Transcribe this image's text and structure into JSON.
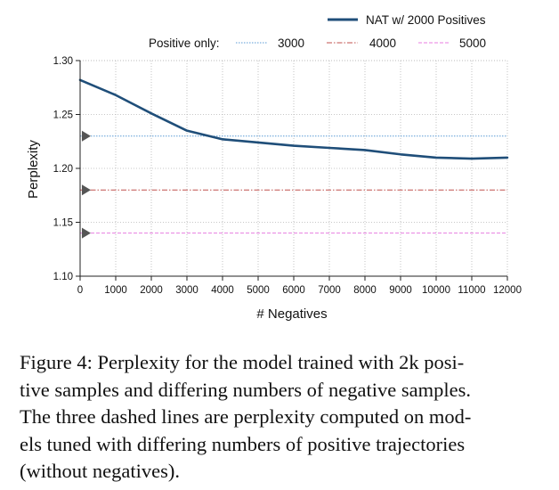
{
  "chart_data": {
    "type": "line",
    "title": "",
    "xlabel": "# Negatives",
    "ylabel": "Perplexity",
    "xlim": [
      0,
      12000
    ],
    "ylim": [
      1.1,
      1.3
    ],
    "x_ticks": [
      0,
      1000,
      2000,
      3000,
      4000,
      5000,
      6000,
      7000,
      8000,
      9000,
      10000,
      11000,
      12000
    ],
    "x_tick_labels": [
      "0",
      "1000",
      "2000",
      "3000",
      "4000",
      "5000",
      "6000",
      "7000",
      "8000",
      "9000",
      "10000",
      "11000",
      "12000"
    ],
    "y_ticks": [
      1.1,
      1.15,
      1.2,
      1.25,
      1.3
    ],
    "y_tick_labels": [
      "1.10",
      "1.15",
      "1.20",
      "1.25",
      "1.30"
    ],
    "grid": true,
    "series": [
      {
        "name": "NAT w/ 2000 Positives",
        "color": "#1f4e79",
        "style": "solid",
        "x": [
          0,
          1000,
          2000,
          3000,
          4000,
          5000,
          6000,
          7000,
          8000,
          9000,
          10000,
          11000,
          12000
        ],
        "values": [
          1.282,
          1.268,
          1.251,
          1.235,
          1.227,
          1.224,
          1.221,
          1.219,
          1.217,
          1.213,
          1.21,
          1.209,
          1.21
        ]
      }
    ],
    "reference_lines": [
      {
        "name": "3000",
        "value": 1.23,
        "color": "#5b9bd5",
        "style": "dotted"
      },
      {
        "name": "4000",
        "value": 1.18,
        "color": "#c0504d",
        "style": "dashdot"
      },
      {
        "name": "5000",
        "value": 1.14,
        "color": "#e87ee0",
        "style": "dashed"
      }
    ],
    "legend_prefix": "Positive only:",
    "legend_location": "top"
  },
  "caption": "Figure 4: Perplexity for the model trained with 2k positive samples and differing numbers of negative samples. The three dashed lines are perplexity computed on models tuned with differing numbers of positive trajectories (without negatives).",
  "caption_lines": [
    "Figure 4: Perplexity for the model trained with 2k posi-",
    "tive samples and differing numbers of negative samples.",
    "The three dashed lines are perplexity computed on mod-",
    "els tuned with differing numbers of positive trajectories",
    "(without negatives)."
  ]
}
